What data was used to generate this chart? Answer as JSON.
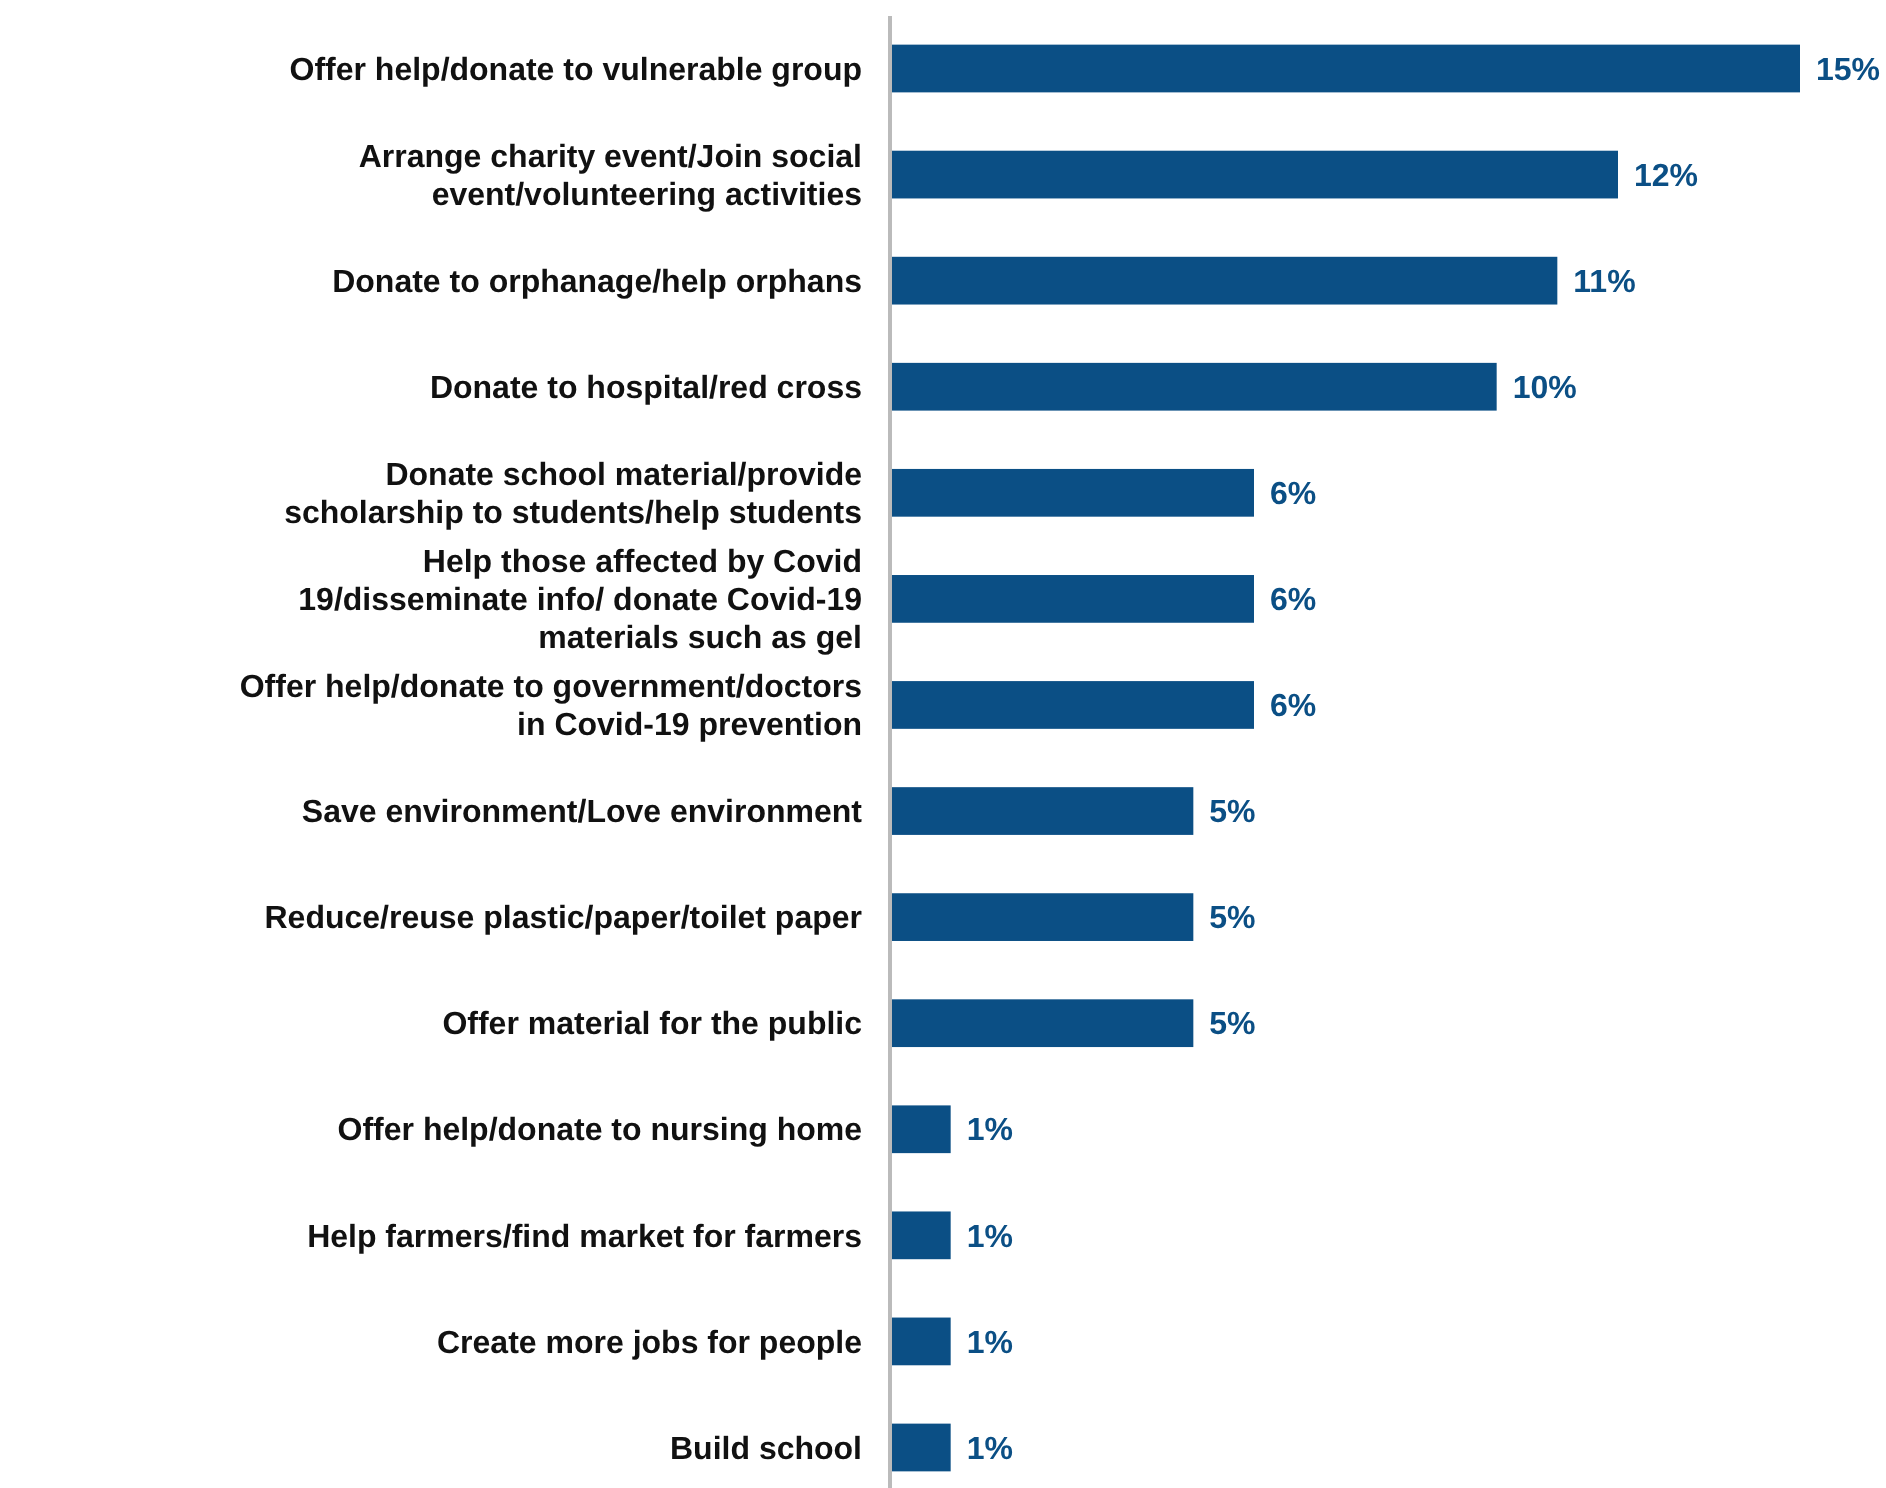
{
  "chart_data": {
    "type": "bar",
    "orientation": "horizontal",
    "color": "#0b4f85",
    "categories": [
      "Offer help/donate to vulnerable group",
      "Arrange charity event/Join social event/volunteering activities",
      "Donate to orphanage/help orphans",
      "Donate to hospital/red cross",
      "Donate school material/provide scholarship to students/help students",
      "Help those affected by Covid 19/disseminate info/ donate Covid-19 materials such as gel",
      "Offer help/donate to government/doctors in Covid-19 prevention",
      "Save environment/Love environment",
      "Reduce/reuse plastic/paper/toilet paper",
      "Offer material for the public",
      "Offer help/donate to nursing home",
      "Help farmers/find market for farmers",
      "Create more jobs for people",
      "Build school"
    ],
    "values": [
      15,
      12,
      11,
      10,
      6,
      6,
      6,
      5,
      5,
      5,
      1,
      1,
      1,
      1
    ],
    "value_labels": [
      "15%",
      "12%",
      "11%",
      "10%",
      "6%",
      "6%",
      "6%",
      "5%",
      "5%",
      "5%",
      "1%",
      "1%",
      "1%",
      "1%"
    ]
  }
}
